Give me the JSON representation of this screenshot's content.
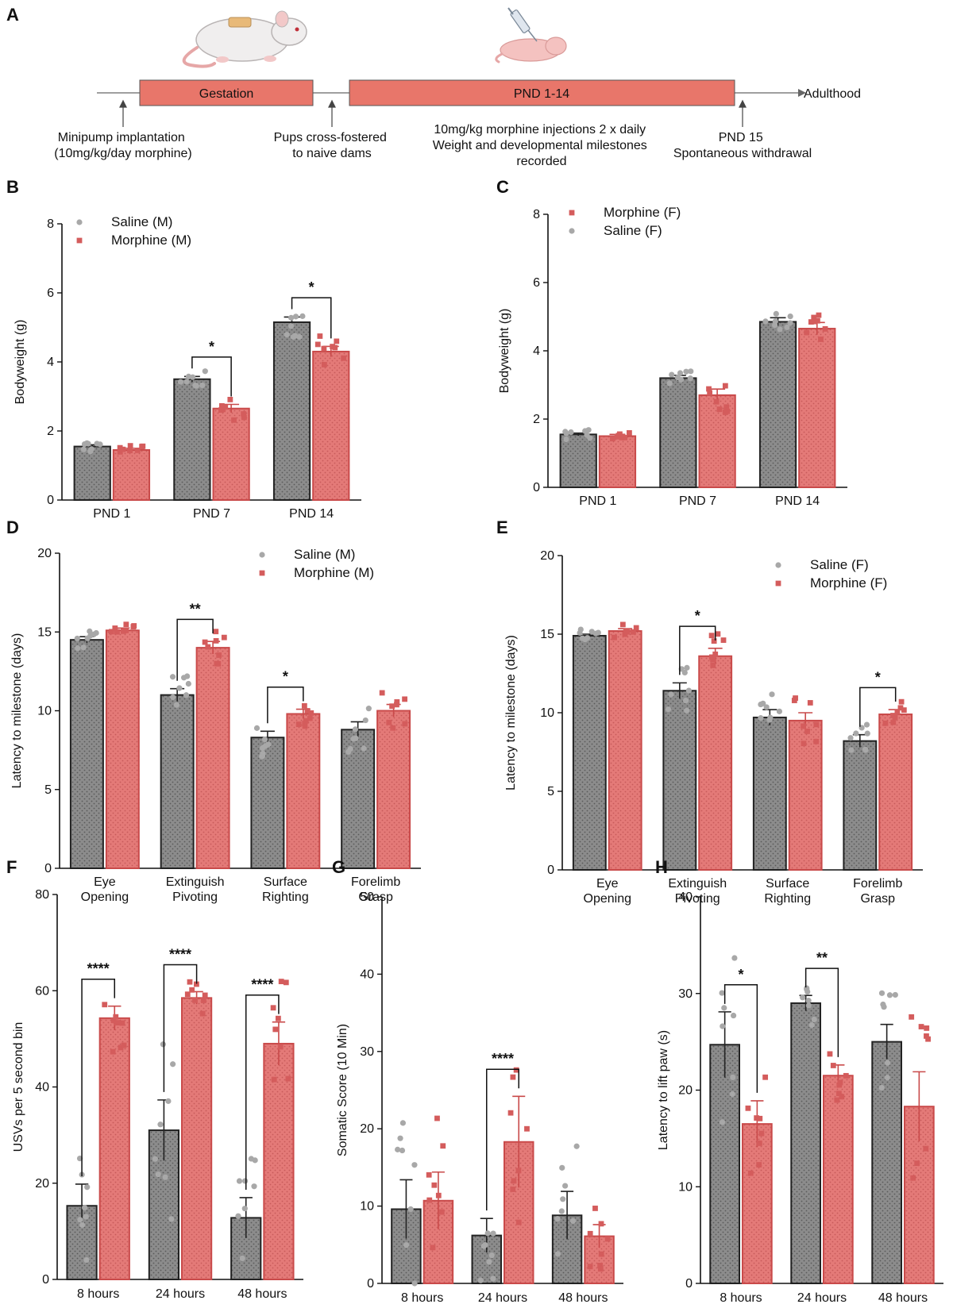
{
  "colors": {
    "saline": "#8c8c8c",
    "saline_dot": "#a8a8a8",
    "morphine": "#e07070",
    "morphine_dot": "#d45c5c",
    "timeline_box": "#e8766a",
    "text": "#111111"
  },
  "panel_a": {
    "letter": "A",
    "gestation_label": "Gestation",
    "pnd_label": "PND 1-14",
    "adulthood_label": "Adulthood",
    "notes": {
      "minipump": [
        "Minipump implantation",
        "(10mg/kg/day morphine)"
      ],
      "crossfoster": [
        "Pups cross-fostered",
        "to naive dams"
      ],
      "injections": [
        "10mg/kg morphine injections 2 x daily",
        "Weight and developmental milestones",
        "recorded"
      ],
      "withdrawal": [
        "PND 15",
        "Spontaneous withdrawal"
      ]
    },
    "icons": [
      "rat-icon",
      "pup-icon",
      "syringe-icon"
    ]
  },
  "chart_data": [
    {
      "id": "B",
      "letter": "B",
      "type": "bar",
      "ylabel": "Bodyweight (g)",
      "ylim": [
        0,
        8
      ],
      "yticks": [
        0,
        2,
        4,
        6,
        8
      ],
      "categories": [
        "PND 1",
        "PND 7",
        "PND 14"
      ],
      "legend": [
        {
          "label": "Saline (M)",
          "series": "saline"
        },
        {
          "label": "Morphine (M)",
          "series": "morphine"
        }
      ],
      "legend_position": "top-left",
      "series": [
        {
          "name": "Saline (M)",
          "key": "saline",
          "values": [
            1.55,
            3.5,
            5.15
          ],
          "errors": [
            0.05,
            0.08,
            0.15
          ]
        },
        {
          "name": "Morphine (M)",
          "key": "morphine",
          "values": [
            1.45,
            2.65,
            4.3
          ],
          "errors": [
            0.05,
            0.12,
            0.15
          ]
        }
      ],
      "significance": [
        {
          "category": 1,
          "label": "*"
        },
        {
          "category": 2,
          "label": "*"
        }
      ]
    },
    {
      "id": "C",
      "letter": "C",
      "type": "bar",
      "ylabel": "Bodyweight (g)",
      "ylim": [
        0,
        8
      ],
      "yticks": [
        0,
        2,
        4,
        6,
        8
      ],
      "categories": [
        "PND 1",
        "PND 7",
        "PND 14"
      ],
      "legend": [
        {
          "label": "Morphine (F)",
          "series": "morphine"
        },
        {
          "label": "Saline (F)",
          "series": "saline"
        }
      ],
      "legend_position": "top-left",
      "series": [
        {
          "name": "Saline (F)",
          "key": "saline",
          "values": [
            1.55,
            3.2,
            4.85
          ],
          "errors": [
            0.04,
            0.08,
            0.12
          ]
        },
        {
          "name": "Morphine (F)",
          "key": "morphine",
          "values": [
            1.5,
            2.7,
            4.65
          ],
          "errors": [
            0.05,
            0.18,
            0.18
          ]
        }
      ],
      "significance": []
    },
    {
      "id": "D",
      "letter": "D",
      "type": "bar",
      "ylabel": "Latency to milestone (days)",
      "ylim": [
        0,
        20
      ],
      "yticks": [
        0,
        5,
        10,
        15,
        20
      ],
      "categories": [
        "Eye\nOpening",
        "Extinguish\nPivoting",
        "Surface\nRighting",
        "Forelimb\nGrasp"
      ],
      "legend": [
        {
          "label": "Saline (M)",
          "series": "saline"
        },
        {
          "label": "Morphine (M)",
          "series": "morphine"
        }
      ],
      "legend_position": "top-right",
      "series": [
        {
          "name": "Saline (M)",
          "key": "saline",
          "values": [
            14.5,
            11.0,
            8.3,
            8.8
          ],
          "errors": [
            0.2,
            0.4,
            0.4,
            0.5
          ]
        },
        {
          "name": "Morphine (M)",
          "key": "morphine",
          "values": [
            15.1,
            14.0,
            9.8,
            10.0
          ],
          "errors": [
            0.15,
            0.4,
            0.3,
            0.4
          ]
        }
      ],
      "significance": [
        {
          "category": 1,
          "label": "**"
        },
        {
          "category": 2,
          "label": "*"
        }
      ]
    },
    {
      "id": "E",
      "letter": "E",
      "type": "bar",
      "ylabel": "Latency to milestone (days)",
      "ylim": [
        0,
        20
      ],
      "yticks": [
        0,
        5,
        10,
        15,
        20
      ],
      "categories": [
        "Eye\nOpening",
        "Extinguish\nPivoting",
        "Surface\nRighting",
        "Forelimb\nGrasp"
      ],
      "legend": [
        {
          "label": "Saline (F)",
          "series": "saline"
        },
        {
          "label": "Morphine (F)",
          "series": "morphine"
        }
      ],
      "legend_position": "top-right",
      "series": [
        {
          "name": "Saline (F)",
          "key": "saline",
          "values": [
            14.9,
            11.4,
            9.7,
            8.2
          ],
          "errors": [
            0.1,
            0.5,
            0.5,
            0.4
          ]
        },
        {
          "name": "Morphine (F)",
          "key": "morphine",
          "values": [
            15.2,
            13.6,
            9.5,
            9.9
          ],
          "errors": [
            0.15,
            0.5,
            0.5,
            0.3
          ]
        }
      ],
      "significance": [
        {
          "category": 1,
          "label": "*"
        },
        {
          "category": 3,
          "label": "*"
        }
      ]
    },
    {
      "id": "F",
      "letter": "F",
      "type": "bar",
      "ylabel": "USVs per 5 second bin",
      "ylim": [
        0,
        80
      ],
      "yticks": [
        0,
        20,
        40,
        60,
        80
      ],
      "categories": [
        "8 hours",
        "24 hours",
        "48 hours"
      ],
      "legend": [],
      "legend_position": "none",
      "series": [
        {
          "name": "Saline",
          "key": "saline",
          "values": [
            15.3,
            31.0,
            12.8
          ],
          "errors": [
            4.5,
            6.3,
            4.2
          ]
        },
        {
          "name": "Morphine",
          "key": "morphine",
          "values": [
            54.3,
            58.5,
            49.0
          ],
          "errors": [
            2.5,
            1.3,
            4.5
          ]
        }
      ],
      "significance": [
        {
          "category": 0,
          "label": "****"
        },
        {
          "category": 1,
          "label": "****"
        },
        {
          "category": 2,
          "label": "****"
        }
      ]
    },
    {
      "id": "G",
      "letter": "G",
      "type": "bar",
      "ylabel": "Somatic Score (10 Min)",
      "ylim": [
        0,
        50
      ],
      "yticks": [
        0,
        10,
        20,
        30,
        40,
        50
      ],
      "categories": [
        "8 hours",
        "24 hours",
        "48 hours"
      ],
      "legend": [],
      "legend_position": "none",
      "series": [
        {
          "name": "Saline",
          "key": "saline",
          "values": [
            9.6,
            6.2,
            8.8
          ],
          "errors": [
            3.8,
            2.2,
            3.1
          ]
        },
        {
          "name": "Morphine",
          "key": "morphine",
          "values": [
            10.7,
            18.3,
            6.1
          ],
          "errors": [
            3.7,
            5.9,
            1.5
          ]
        }
      ],
      "significance": [
        {
          "category": 1,
          "label": "****"
        }
      ]
    },
    {
      "id": "H",
      "letter": "H",
      "type": "bar",
      "ylabel": "Latency to lift paw (s)",
      "ylim": [
        0,
        40
      ],
      "yticks": [
        0,
        10,
        20,
        30,
        40
      ],
      "categories": [
        "8 hours",
        "24 hours",
        "48 hours"
      ],
      "legend": [],
      "legend_position": "none",
      "series": [
        {
          "name": "Saline",
          "key": "saline",
          "values": [
            24.7,
            29.0,
            25.0
          ],
          "errors": [
            3.4,
            0.8,
            1.8
          ]
        },
        {
          "name": "Morphine",
          "key": "morphine",
          "values": [
            16.5,
            21.5,
            18.3
          ],
          "errors": [
            2.4,
            1.1,
            3.6
          ]
        }
      ],
      "significance": [
        {
          "category": 0,
          "label": "*"
        },
        {
          "category": 1,
          "label": "**"
        }
      ]
    }
  ]
}
